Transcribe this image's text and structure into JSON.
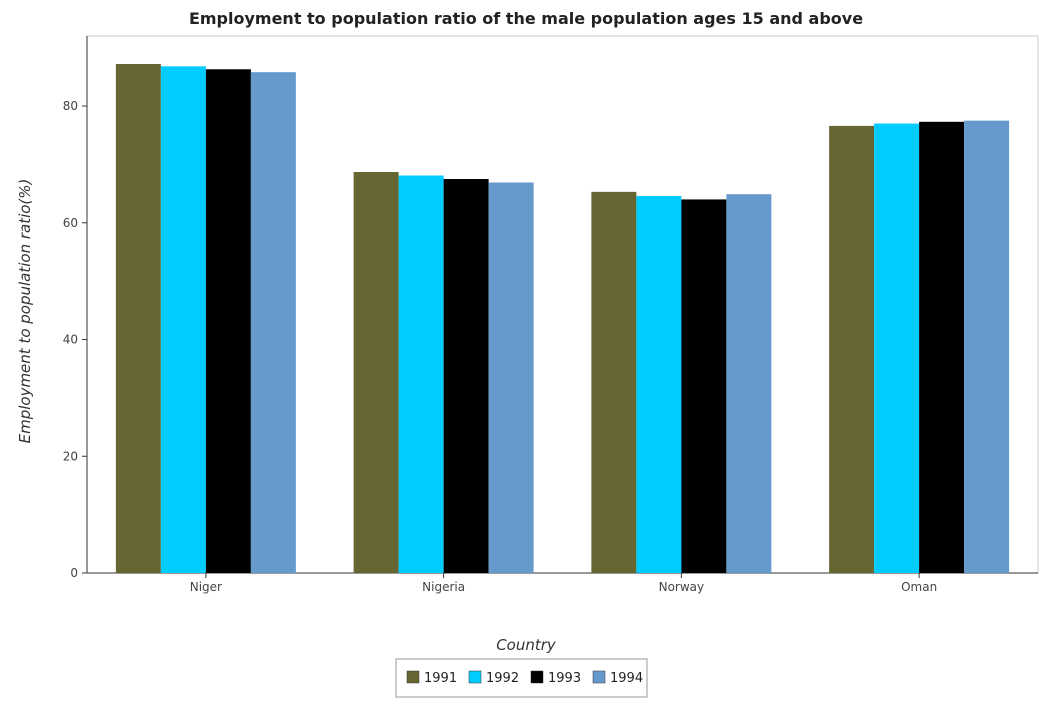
{
  "chart_data": {
    "type": "bar",
    "title": "Employment to population ratio of the male population ages 15 and above",
    "xlabel": "Country",
    "ylabel": "Employment to population ratio(%)",
    "categories": [
      "Niger",
      "Nigeria",
      "Norway",
      "Oman"
    ],
    "series": [
      {
        "name": "1991",
        "color": "#666633",
        "values": [
          87.2,
          68.7,
          65.3,
          76.6
        ]
      },
      {
        "name": "1992",
        "color": "#00ccff",
        "values": [
          86.8,
          68.1,
          64.6,
          77.0
        ]
      },
      {
        "name": "1993",
        "color": "#000000",
        "values": [
          86.3,
          67.5,
          64.0,
          77.3
        ]
      },
      {
        "name": "1994",
        "color": "#6699cc",
        "values": [
          85.8,
          66.9,
          64.9,
          77.5
        ]
      }
    ],
    "ylim": [
      0,
      92
    ],
    "yticks": [
      0,
      20,
      40,
      60,
      80
    ],
    "grid": false,
    "legend_position": "bottom"
  }
}
